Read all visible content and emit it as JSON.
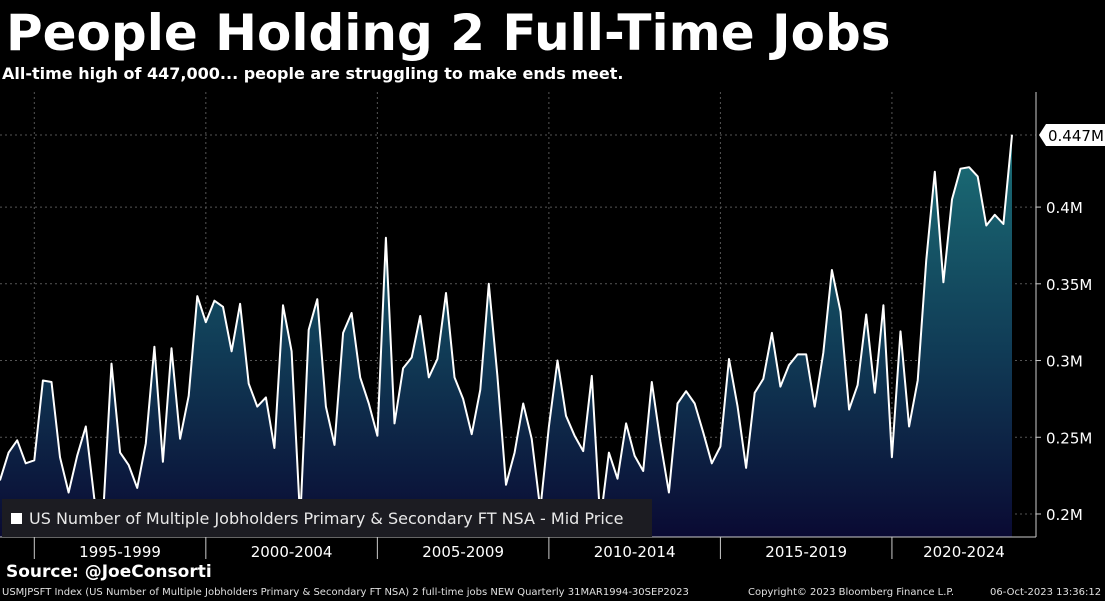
{
  "header": {
    "title": "People Holding 2 Full-Time Jobs",
    "subtitle": "All-time high of 447,000... people are struggling to make ends meet."
  },
  "legend": {
    "label": "US Number of Multiple Jobholders Primary & Secondary FT NSA - Mid Price"
  },
  "source": "Source: @JoeConsorti",
  "footer": {
    "left": "USMJPSFT Index (US Number of Multiple Jobholders Primary & Secondary FT NSA) 2 full-time jobs NEW  Quarterly 31MAR1994-30SEP2023",
    "copyright": "Copyright© 2023 Bloomberg Finance L.P.",
    "timestamp": "06-Oct-2023 13:36:12"
  },
  "colors": {
    "background": "#000000",
    "line": "#ffffff",
    "fill_top": "#1b6f77",
    "fill_bottom": "#0a0a33",
    "grid": "#555555"
  },
  "chart_data": {
    "type": "area",
    "x_start": "1994 Q1",
    "frequency": "quarterly",
    "x_end": "2023 Q3",
    "x_tick_labels": [
      "1995-1999",
      "2000-2004",
      "2005-2009",
      "2010-2014",
      "2015-2019",
      "2020-2024"
    ],
    "y_tick_labels": [
      "0.2M",
      "0.25M",
      "0.3M",
      "0.35M",
      "0.4M"
    ],
    "y_ticks": [
      0.2,
      0.25,
      0.3,
      0.35,
      0.4
    ],
    "ylim": [
      0.185,
      0.475
    ],
    "last_value_label": "0.447M",
    "grid": true,
    "series": [
      {
        "name": "US Number of Multiple Jobholders Primary & Secondary FT NSA - Mid Price",
        "unit": "M",
        "values": [
          0.222,
          0.24,
          0.248,
          0.233,
          0.235,
          0.287,
          0.286,
          0.237,
          0.214,
          0.238,
          0.257,
          0.21,
          0.197,
          0.298,
          0.24,
          0.232,
          0.217,
          0.246,
          0.309,
          0.234,
          0.308,
          0.249,
          0.277,
          0.342,
          0.325,
          0.339,
          0.335,
          0.306,
          0.337,
          0.285,
          0.27,
          0.276,
          0.243,
          0.336,
          0.306,
          0.196,
          0.32,
          0.34,
          0.27,
          0.245,
          0.318,
          0.331,
          0.289,
          0.272,
          0.251,
          0.38,
          0.259,
          0.295,
          0.302,
          0.329,
          0.289,
          0.301,
          0.344,
          0.289,
          0.275,
          0.252,
          0.281,
          0.35,
          0.29,
          0.219,
          0.24,
          0.272,
          0.249,
          0.203,
          0.257,
          0.3,
          0.264,
          0.251,
          0.241,
          0.29,
          0.195,
          0.24,
          0.223,
          0.259,
          0.238,
          0.228,
          0.286,
          0.247,
          0.214,
          0.272,
          0.28,
          0.272,
          0.253,
          0.233,
          0.244,
          0.301,
          0.27,
          0.23,
          0.279,
          0.288,
          0.318,
          0.283,
          0.297,
          0.304,
          0.304,
          0.27,
          0.305,
          0.359,
          0.332,
          0.268,
          0.284,
          0.33,
          0.279,
          0.336,
          0.237,
          0.319,
          0.257,
          0.287,
          0.365,
          0.423,
          0.351,
          0.405,
          0.425,
          0.426,
          0.42,
          0.388,
          0.395,
          0.389,
          0.447
        ]
      }
    ]
  }
}
